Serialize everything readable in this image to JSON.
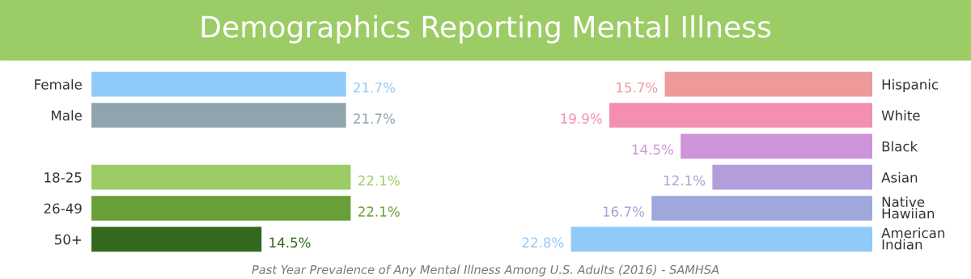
{
  "chart_data": [
    {
      "type": "bar",
      "orientation": "horizontal",
      "title": "Demographics Reporting Mental Illness",
      "annotations": [
        "Past Year Prevalence of Any Mental Illness Among U.S. Adults (2016) - SAMHSA"
      ],
      "categories": [
        "Female",
        "Male",
        null,
        "18-25",
        "26-49",
        "50+"
      ],
      "values": [
        21.7,
        21.7,
        null,
        22.1,
        22.1,
        14.5
      ],
      "colors": [
        "#90caf9",
        "#90a4ae",
        "#ffffff",
        "#9ccc65",
        "#689f38",
        "#33691e"
      ],
      "value_labels": [
        "21.7%",
        "21.7%",
        null,
        "22.1%",
        "22.1%",
        "14.5%"
      ],
      "tick_labels": "y",
      "grid": false,
      "legend": false
    },
    {
      "type": "bar",
      "orientation": "horizontal",
      "categories": [
        "Hispanic",
        "White",
        "Black",
        "Asian",
        "Native\nHawiian",
        "American\nIndian"
      ],
      "values": [
        15.7,
        19.9,
        14.5,
        12.1,
        16.7,
        22.8
      ],
      "colors": [
        "#ef9a9a",
        "#f48fb1",
        "#ce93d8",
        "#b39ddb",
        "#9fa8da",
        "#90caf9"
      ],
      "value_labels": [
        "15.7%",
        "19.9%",
        "14.5%",
        "12.1%",
        "16.7%",
        "22.8%"
      ],
      "tick_labels": "y",
      "grid": false,
      "legend": false
    }
  ]
}
